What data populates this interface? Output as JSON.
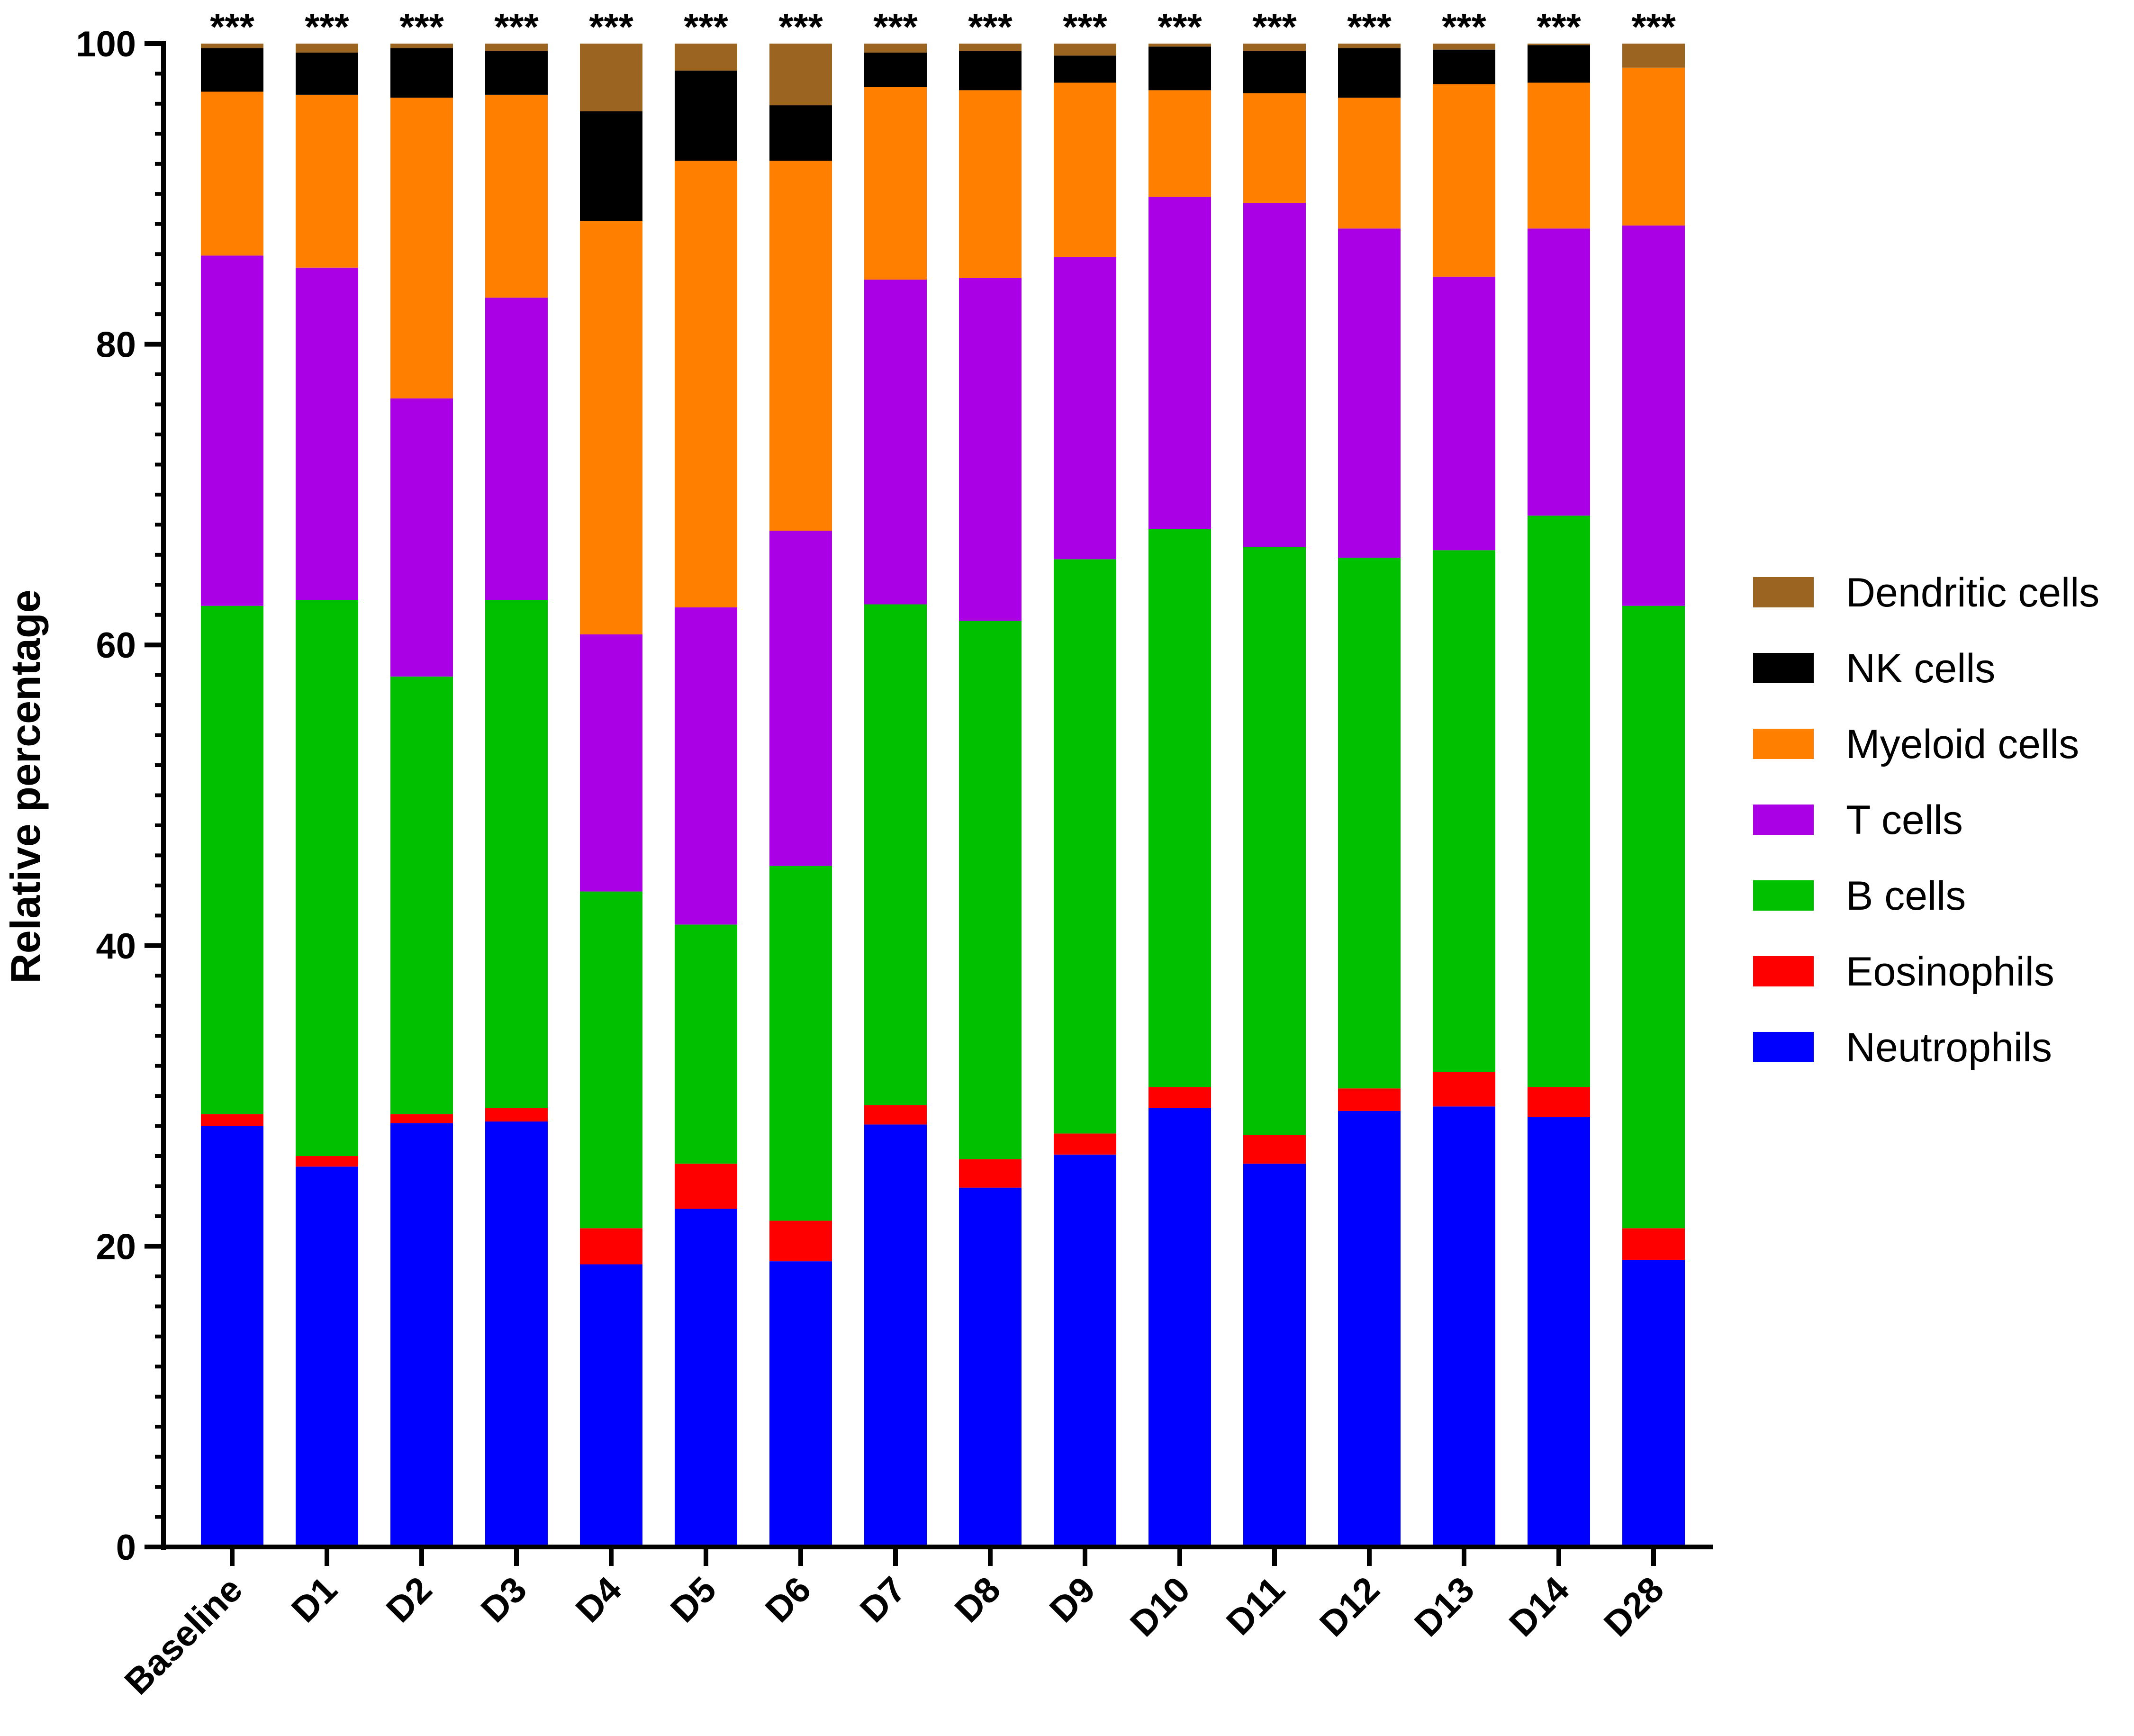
{
  "chart_data": {
    "type": "bar",
    "stacked": true,
    "ylabel": "Relative percentage",
    "xlabel": "",
    "ylim": [
      0,
      100
    ],
    "yticks": [
      0,
      20,
      40,
      60,
      80,
      100
    ],
    "y_minor_step": 2,
    "categories": [
      "Baseline",
      "D1",
      "D2",
      "D3",
      "D4",
      "D5",
      "D6",
      "D7",
      "D8",
      "D9",
      "D10",
      "D11",
      "D12",
      "D13",
      "D14",
      "D28"
    ],
    "annotations": [
      "***",
      "***",
      "***",
      "***",
      "***",
      "***",
      "***",
      "***",
      "***",
      "***",
      "***",
      "***",
      "***",
      "***",
      "***",
      "***"
    ],
    "legend_position": "right",
    "legend_order": [
      "Dendritic cells",
      "NK cells",
      "Myeloid cells",
      "T cells",
      "B cells",
      "Eosinophils",
      "Neutrophils"
    ],
    "series": [
      {
        "name": "Neutrophils",
        "color": "#0000FF",
        "values": [
          28.0,
          25.3,
          28.2,
          28.3,
          18.8,
          22.5,
          19.0,
          28.1,
          23.9,
          26.1,
          29.2,
          25.5,
          29.0,
          29.3,
          28.6,
          19.1
        ]
      },
      {
        "name": "Eosinophils",
        "color": "#FF0000",
        "values": [
          0.8,
          0.7,
          0.6,
          0.9,
          2.4,
          3.0,
          2.7,
          1.3,
          1.9,
          1.4,
          1.4,
          1.9,
          1.5,
          2.3,
          2.0,
          2.1
        ]
      },
      {
        "name": "B cells",
        "color": "#00C000",
        "values": [
          33.8,
          37.0,
          29.1,
          33.8,
          22.4,
          15.9,
          23.6,
          33.3,
          35.8,
          38.2,
          37.1,
          39.1,
          35.3,
          34.7,
          38.0,
          41.4
        ]
      },
      {
        "name": "T cells",
        "color": "#AA00E6",
        "values": [
          23.3,
          22.1,
          18.5,
          20.1,
          17.1,
          21.1,
          22.3,
          21.6,
          22.8,
          20.1,
          22.1,
          22.9,
          21.9,
          18.2,
          19.1,
          25.3
        ]
      },
      {
        "name": "Myeloid cells",
        "color": "#FF8000",
        "values": [
          10.9,
          11.5,
          20.0,
          13.5,
          27.5,
          29.7,
          24.6,
          12.8,
          12.5,
          11.6,
          7.1,
          7.3,
          8.7,
          12.8,
          9.7,
          10.5
        ]
      },
      {
        "name": "NK cells",
        "color": "#000000",
        "values": [
          2.9,
          2.8,
          3.3,
          2.9,
          7.3,
          6.0,
          3.7,
          2.3,
          2.6,
          1.8,
          2.9,
          2.8,
          3.3,
          2.3,
          2.5,
          0.0
        ]
      },
      {
        "name": "Dendritic cells",
        "color": "#9B6420",
        "values": [
          0.3,
          0.6,
          0.3,
          0.5,
          4.5,
          1.8,
          4.1,
          0.6,
          0.5,
          0.8,
          0.2,
          0.5,
          0.3,
          0.4,
          0.1,
          1.6
        ]
      }
    ]
  }
}
